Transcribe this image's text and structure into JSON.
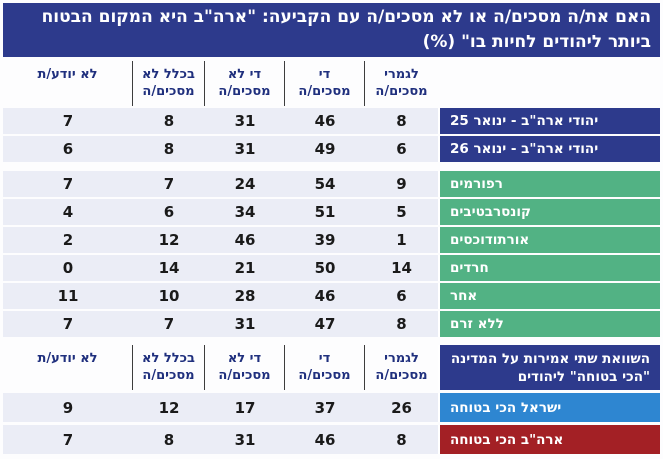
{
  "title": "האם את/ה מסכים/ה או לא מסכים/ה עם הקביעה: \"ארה\"ב היא המקום הבטוח ביותר ליהודים לחיות בו\" (%)",
  "colors": {
    "navy": "#2d3a8c",
    "green": "#52b284",
    "lightblue": "#2e86d1",
    "red": "#a32025",
    "cell_bg": "#ebedf6",
    "header_text": "#20307e",
    "divider": "#3d3d3d",
    "banner_bg": "#2d3a8c"
  },
  "chart_data": [
    {
      "type": "table",
      "title": "האם את/ה מסכים/ה או לא מסכים/ה עם הקביעה: \"ארה\"ב היא המקום הבטוח ביותר ליהודים לחיות בו\" (%)",
      "columns": [
        "לגמרי\nמסכים/ה",
        "די\nמסכים/ה",
        "די לא\nמסכים/ה",
        "בכלל לא\nמסכים/ה",
        "לא יודע/ת"
      ],
      "section_break_after": 1,
      "rows": [
        {
          "label": "יהודי ארה\"ב - ינואר 25",
          "group": "navy",
          "values": [
            8,
            46,
            31,
            8,
            7
          ]
        },
        {
          "label": "יהודי ארה\"ב - ינואר 26",
          "group": "navy",
          "values": [
            6,
            49,
            31,
            8,
            6
          ]
        },
        {
          "label": "רפורמים",
          "group": "green",
          "values": [
            9,
            54,
            24,
            7,
            7
          ]
        },
        {
          "label": "קונסרבטיבים",
          "group": "green",
          "values": [
            5,
            51,
            34,
            6,
            4
          ]
        },
        {
          "label": "אורתודוכסים",
          "group": "green",
          "values": [
            1,
            39,
            46,
            12,
            2
          ]
        },
        {
          "label": "חרדים",
          "group": "green",
          "values": [
            14,
            50,
            21,
            14,
            0
          ]
        },
        {
          "label": "אחר",
          "group": "green",
          "values": [
            6,
            46,
            28,
            10,
            11
          ]
        },
        {
          "label": "ללא זרם",
          "group": "green",
          "values": [
            8,
            47,
            31,
            7,
            7
          ]
        }
      ]
    },
    {
      "type": "table",
      "header": "השוואת שתי אמירות על המדינה \"הכי בטוחה\" ליהודים",
      "columns": [
        "לגמרי\nמסכים/ה",
        "די\nמסכים/ה",
        "די לא\nמסכים/ה",
        "בכלל לא\nמסכים/ה",
        "לא יודע/ת"
      ],
      "rows": [
        {
          "label": "ישראל הכי בטוחה",
          "group": "lightblue",
          "values": [
            26,
            37,
            17,
            12,
            9
          ]
        },
        {
          "label": "ארה\"ב הכי בטוחה",
          "group": "red",
          "values": [
            8,
            46,
            31,
            8,
            7
          ]
        }
      ]
    }
  ]
}
